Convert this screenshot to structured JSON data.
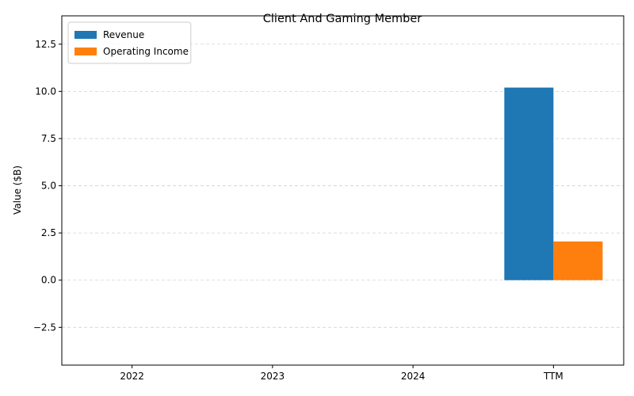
{
  "chart_data": {
    "type": "bar",
    "title": "Client And Gaming Member",
    "xlabel": "",
    "ylabel": "Value ($B)",
    "categories": [
      "2022",
      "2023",
      "2024",
      "TTM"
    ],
    "series": [
      {
        "name": "Revenue",
        "color": "#1f77b4",
        "values": [
          null,
          null,
          null,
          10.2
        ]
      },
      {
        "name": "Operating Income",
        "color": "#ff7f0e",
        "values": [
          null,
          null,
          null,
          2.05
        ]
      }
    ],
    "ylim": [
      -4.5,
      14.0
    ],
    "yticks": [
      -2.5,
      0.0,
      2.5,
      5.0,
      7.5,
      10.0,
      12.5
    ],
    "ytick_labels": [
      "−2.5",
      "0.0",
      "2.5",
      "5.0",
      "7.5",
      "10.0",
      "12.5"
    ],
    "grid": "y-dashed",
    "legend_position": "top-left"
  }
}
